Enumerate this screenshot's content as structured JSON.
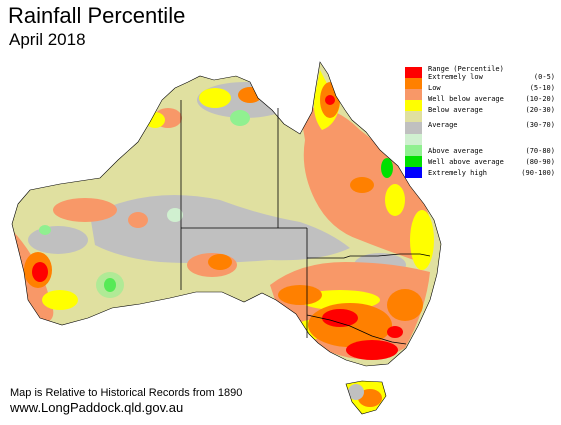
{
  "title": "Rainfall Percentile",
  "subtitle": "April 2018",
  "legend": {
    "header_label": "Range (Percentile)",
    "items": [
      {
        "label": "Extremely low",
        "range": "(0-5)",
        "color": "#ff0000"
      },
      {
        "label": "Low",
        "range": "(5-10)",
        "color": "#ff8000"
      },
      {
        "label": "Well below average",
        "range": "(10-20)",
        "color": "#f89868"
      },
      {
        "label": "Below average",
        "range": "(20-30)",
        "color": "#ffff00"
      },
      {
        "label": "",
        "range": "",
        "color": "#e0e0a0"
      },
      {
        "label": "Average",
        "range": "(30-70)",
        "color": "#c0c0c0"
      },
      {
        "label": "",
        "range": "",
        "color": "#d0f0d0"
      },
      {
        "label": "Above average",
        "range": "(70-80)",
        "color": "#90f090"
      },
      {
        "label": "Well above average",
        "range": "(80-90)",
        "color": "#00e000"
      },
      {
        "label": "Extremely high",
        "range": "(90-100)",
        "color": "#0000ff"
      }
    ]
  },
  "footnote": "Map is Relative to Historical Records from 1890",
  "website": "www.LongPaddock.qld.gov.au"
}
